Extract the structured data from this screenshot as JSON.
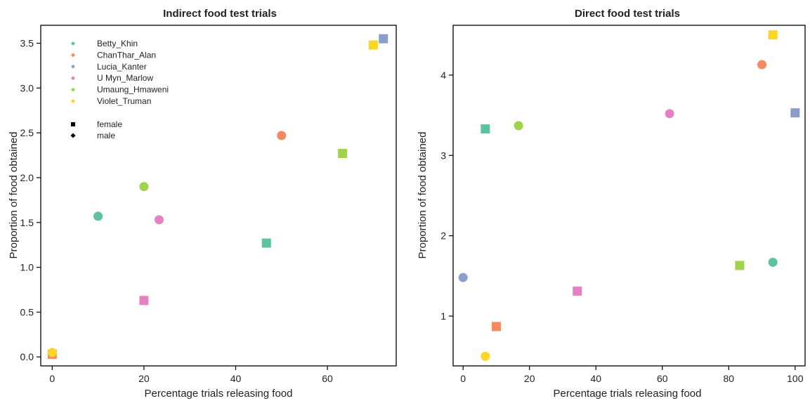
{
  "chart_data": [
    {
      "type": "scatter",
      "title": "Indirect food test trials",
      "xlabel": "Percentage trials releasing food",
      "ylabel": "Proportion of food obtained",
      "xlim": [
        -2.5,
        75
      ],
      "ylim": [
        -0.1,
        3.7
      ],
      "xticks": [
        0,
        20,
        40,
        60
      ],
      "yticks": [
        0.0,
        0.5,
        1.0,
        1.5,
        2.0,
        2.5,
        3.0,
        3.5
      ],
      "ytick_labels": [
        "0.0",
        "0.5",
        "1.0",
        "1.5",
        "2.0",
        "2.5",
        "3.0",
        "3.5"
      ],
      "grid": false,
      "legend": {
        "placement": "top-left",
        "individuals": [
          {
            "name": "Betty_Khin",
            "color": "#5cc29f"
          },
          {
            "name": "ChanThar_Alan",
            "color": "#f48a60"
          },
          {
            "name": "Lucia_Kanter",
            "color": "#8a9ecc"
          },
          {
            "name": "U Myn_Marlow",
            "color": "#e381c3"
          },
          {
            "name": "Umaung_Hmaweni",
            "color": "#9fd34c"
          },
          {
            "name": "Violet_Truman",
            "color": "#fdd525"
          }
        ],
        "sexes": [
          {
            "name": "female",
            "shape": "square"
          },
          {
            "name": "male",
            "shape": "circle"
          }
        ]
      },
      "points": [
        {
          "individual": "Betty_Khin",
          "sex": "male",
          "x": 10,
          "y": 1.57
        },
        {
          "individual": "Betty_Khin",
          "sex": "female",
          "x": 46.7,
          "y": 1.27
        },
        {
          "individual": "ChanThar_Alan",
          "sex": "male",
          "x": 50,
          "y": 2.47
        },
        {
          "individual": "ChanThar_Alan",
          "sex": "female",
          "x": 0,
          "y": 0.03
        },
        {
          "individual": "Lucia_Kanter",
          "sex": "female",
          "x": 72.2,
          "y": 3.55
        },
        {
          "individual": "U Myn_Marlow",
          "sex": "male",
          "x": 23.3,
          "y": 1.53
        },
        {
          "individual": "U Myn_Marlow",
          "sex": "female",
          "x": 20,
          "y": 0.63
        },
        {
          "individual": "Umaung_Hmaweni",
          "sex": "male",
          "x": 20,
          "y": 1.9
        },
        {
          "individual": "Umaung_Hmaweni",
          "sex": "female",
          "x": 63.3,
          "y": 2.27
        },
        {
          "individual": "Violet_Truman",
          "sex": "female",
          "x": 70,
          "y": 3.48
        },
        {
          "individual": "Violet_Truman",
          "sex": "male",
          "x": 0,
          "y": 0.05
        }
      ]
    },
    {
      "type": "scatter",
      "title": "Direct food test trials",
      "xlabel": "Percentage trials releasing food",
      "ylabel": "Proportion of food obtained",
      "xlim": [
        -3,
        103
      ],
      "ylim": [
        0.38,
        4.62
      ],
      "xticks": [
        0,
        20,
        40,
        60,
        80,
        100
      ],
      "yticks": [
        1,
        2,
        3,
        4
      ],
      "ytick_labels": [
        "1",
        "2",
        "3",
        "4"
      ],
      "grid": false,
      "points": [
        {
          "individual": "Betty_Khin",
          "sex": "female",
          "x": 6.7,
          "y": 3.33
        },
        {
          "individual": "Betty_Khin",
          "sex": "male",
          "x": 93.3,
          "y": 1.67
        },
        {
          "individual": "ChanThar_Alan",
          "sex": "male",
          "x": 90,
          "y": 4.13
        },
        {
          "individual": "ChanThar_Alan",
          "sex": "female",
          "x": 10,
          "y": 0.87
        },
        {
          "individual": "Lucia_Kanter",
          "sex": "female",
          "x": 100,
          "y": 3.53
        },
        {
          "individual": "Lucia_Kanter",
          "sex": "male",
          "x": 0,
          "y": 1.48
        },
        {
          "individual": "U Myn_Marlow",
          "sex": "male",
          "x": 62.2,
          "y": 3.52
        },
        {
          "individual": "U Myn_Marlow",
          "sex": "female",
          "x": 34.4,
          "y": 1.31
        },
        {
          "individual": "Umaung_Hmaweni",
          "sex": "male",
          "x": 16.7,
          "y": 3.37
        },
        {
          "individual": "Umaung_Hmaweni",
          "sex": "female",
          "x": 83.3,
          "y": 1.63
        },
        {
          "individual": "Violet_Truman",
          "sex": "female",
          "x": 93.3,
          "y": 4.5
        },
        {
          "individual": "Violet_Truman",
          "sex": "male",
          "x": 6.7,
          "y": 0.5
        }
      ]
    }
  ]
}
